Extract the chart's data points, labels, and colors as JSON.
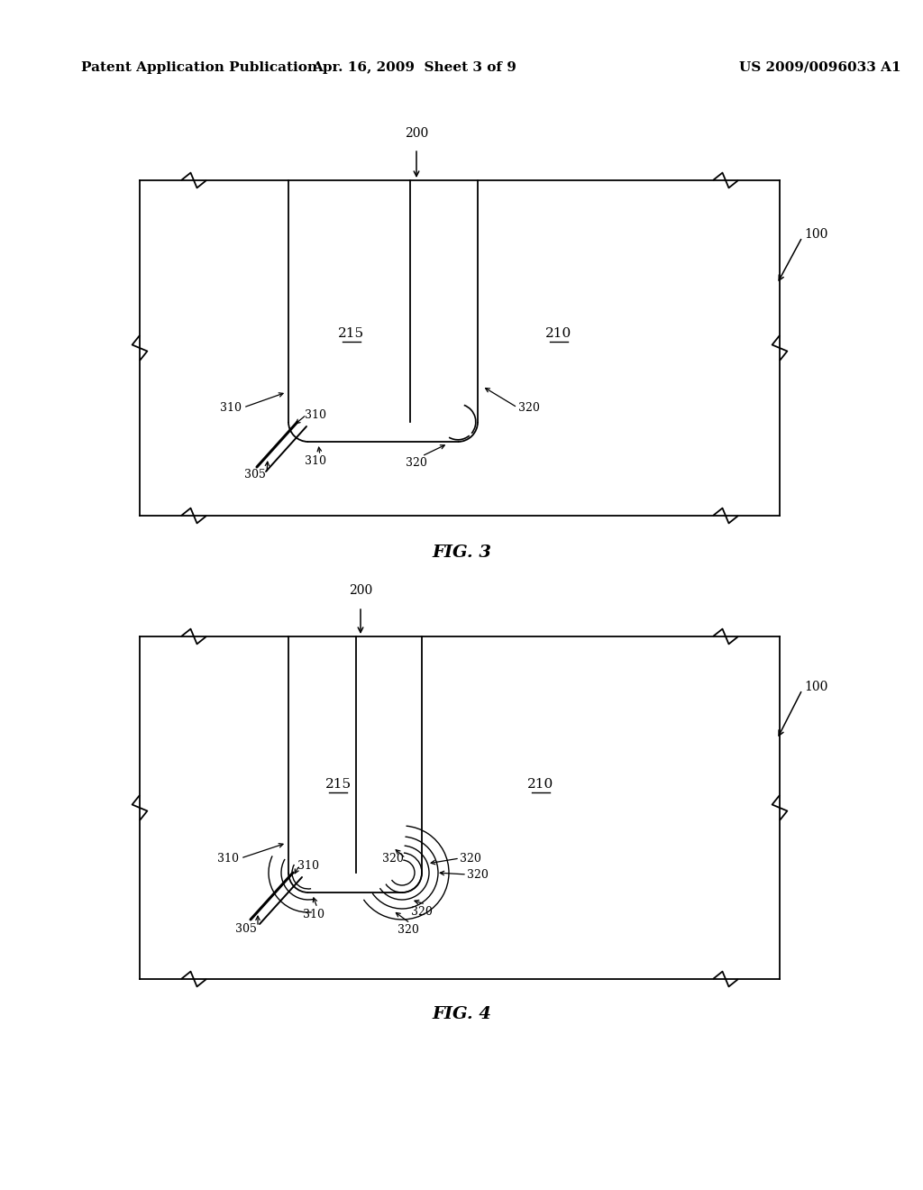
{
  "header_left": "Patent Application Publication",
  "header_center": "Apr. 16, 2009  Sheet 3 of 9",
  "header_right": "US 2009/0096033 A1",
  "fig3_label": "FIG. 3",
  "fig4_label": "FIG. 4",
  "bg_color": "#ffffff",
  "line_color": "#000000"
}
